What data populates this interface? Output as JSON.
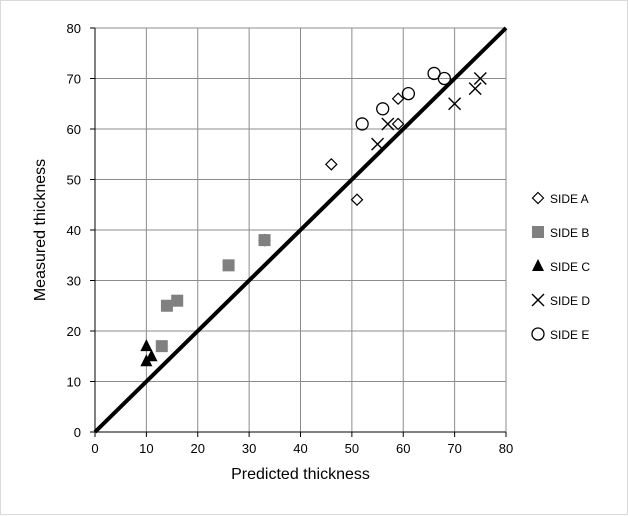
{
  "chart_data": {
    "type": "scatter",
    "title": "",
    "xlabel": "Predicted thickness",
    "ylabel": "Measured thickness",
    "xlim": [
      0,
      80
    ],
    "ylim": [
      0,
      80
    ],
    "xticks": [
      0,
      10,
      20,
      30,
      40,
      50,
      60,
      70,
      80
    ],
    "yticks": [
      0,
      10,
      20,
      30,
      40,
      50,
      60,
      70,
      80
    ],
    "grid": true,
    "legend_position": "right",
    "reference_line": {
      "from": [
        0,
        0
      ],
      "to": [
        80,
        80
      ],
      "color": "#000000"
    },
    "series": [
      {
        "name": "SIDE A",
        "marker": "diamond-open",
        "color": "#000000",
        "points": [
          [
            33,
            38
          ],
          [
            46,
            53
          ],
          [
            51,
            46
          ],
          [
            59,
            61
          ],
          [
            59,
            66
          ]
        ]
      },
      {
        "name": "SIDE B",
        "marker": "square-filled",
        "color": "#808080",
        "points": [
          [
            13,
            17
          ],
          [
            14,
            25
          ],
          [
            16,
            26
          ],
          [
            26,
            33
          ],
          [
            33,
            38
          ]
        ]
      },
      {
        "name": "SIDE C",
        "marker": "triangle-filled",
        "color": "#000000",
        "points": [
          [
            10,
            14
          ],
          [
            10,
            17
          ],
          [
            11,
            15
          ]
        ]
      },
      {
        "name": "SIDE D",
        "marker": "x",
        "color": "#000000",
        "points": [
          [
            55,
            57
          ],
          [
            57,
            61
          ],
          [
            70,
            65
          ],
          [
            74,
            68
          ],
          [
            75,
            70
          ]
        ]
      },
      {
        "name": "SIDE E",
        "marker": "circle-open",
        "color": "#000000",
        "points": [
          [
            52,
            61
          ],
          [
            56,
            64
          ],
          [
            61,
            67
          ],
          [
            66,
            71
          ],
          [
            68,
            70
          ]
        ]
      }
    ]
  }
}
